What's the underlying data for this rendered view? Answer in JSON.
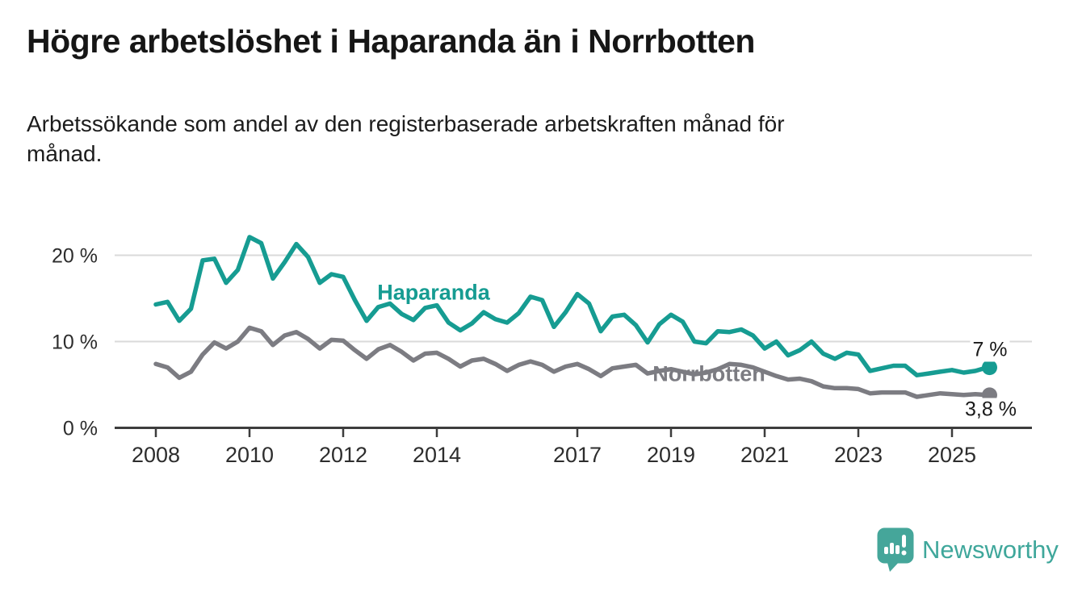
{
  "header": {
    "title": "Högre arbetslöshet i Haparanda än i Norrbotten",
    "subtitle": "Arbetssökande som andel av den registerbaserade arbetskraften månad för månad."
  },
  "footer": {
    "brand": "Newsworthy"
  },
  "colors": {
    "haparanda": "#169C92",
    "norrbotten": "#7C7C82",
    "grid": "#DADADA",
    "axis": "#3D3D3D",
    "label": "#2D2D2D",
    "logo": "#45A69A"
  },
  "chart_data": {
    "type": "line",
    "title": "Högre arbetslöshet i Haparanda än i Norrbotten",
    "subtitle": "Arbetssökande som andel av den registerbaserade arbetskraften månad för månad.",
    "unit": "%",
    "x_start": 2008.0,
    "x_step": 0.25,
    "xlim": [
      2007.1,
      2026.7
    ],
    "ylim": [
      0,
      23
    ],
    "grid": "horizontal",
    "legend_position": "inline-labels",
    "x_ticks": [
      {
        "year": 2008,
        "label": "2008"
      },
      {
        "year": 2010,
        "label": "2010"
      },
      {
        "year": 2012,
        "label": "2012"
      },
      {
        "year": 2014,
        "label": "2014"
      },
      {
        "year": 2017,
        "label": "2017"
      },
      {
        "year": 2019,
        "label": "2019"
      },
      {
        "year": 2021,
        "label": "2021"
      },
      {
        "year": 2023,
        "label": "2023"
      },
      {
        "year": 2025,
        "label": "2025"
      }
    ],
    "y_ticks": [
      {
        "value": 0,
        "label": "0 %"
      },
      {
        "value": 10,
        "label": "10 %"
      },
      {
        "value": 20,
        "label": "20 %"
      }
    ],
    "series": [
      {
        "name": "Haparanda",
        "color": "#169C92",
        "end_label": "7 %",
        "end_value": 7.0,
        "values": [
          14.3,
          14.6,
          12.4,
          13.8,
          19.4,
          19.6,
          16.8,
          18.3,
          22.1,
          21.4,
          17.3,
          19.2,
          21.3,
          19.8,
          16.8,
          17.8,
          17.5,
          14.8,
          12.4,
          14.0,
          14.4,
          13.2,
          12.5,
          13.9,
          14.2,
          12.2,
          11.3,
          12.1,
          13.4,
          12.6,
          12.2,
          13.3,
          15.2,
          14.8,
          11.7,
          13.4,
          15.5,
          14.4,
          11.2,
          12.9,
          13.1,
          11.9,
          9.9,
          12.0,
          13.1,
          12.3,
          10.0,
          9.8,
          11.2,
          11.1,
          11.4,
          10.7,
          9.2,
          10.0,
          8.4,
          9.0,
          10.0,
          8.6,
          8.0,
          8.7,
          8.5,
          6.6,
          6.9,
          7.2,
          7.2,
          6.1,
          6.3,
          6.5,
          6.7,
          6.4,
          6.6,
          7.0
        ]
      },
      {
        "name": "Norrbotten",
        "color": "#7C7C82",
        "end_label": "3,8 %",
        "end_value": 3.8,
        "values": [
          7.4,
          7.0,
          5.8,
          6.5,
          8.5,
          9.9,
          9.2,
          10.0,
          11.6,
          11.2,
          9.6,
          10.7,
          11.1,
          10.3,
          9.2,
          10.2,
          10.1,
          9.0,
          8.0,
          9.1,
          9.6,
          8.8,
          7.8,
          8.6,
          8.7,
          8.0,
          7.1,
          7.8,
          8.0,
          7.4,
          6.6,
          7.3,
          7.7,
          7.3,
          6.5,
          7.1,
          7.4,
          6.8,
          6.0,
          6.9,
          7.1,
          7.3,
          6.3,
          6.6,
          6.8,
          6.5,
          6.2,
          6.4,
          6.8,
          7.4,
          7.3,
          7.0,
          6.5,
          6.0,
          5.6,
          5.7,
          5.4,
          4.8,
          4.6,
          4.6,
          4.5,
          4.0,
          4.1,
          4.1,
          4.1,
          3.6,
          3.8,
          4.0,
          3.9,
          3.8,
          3.9,
          3.8
        ]
      }
    ]
  }
}
